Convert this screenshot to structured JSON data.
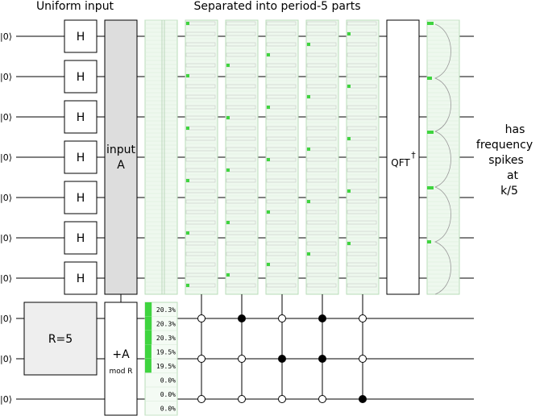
{
  "headers": {
    "left": "Uniform input",
    "right": "Separated into period-5 parts"
  },
  "ket_label": "|0⟩",
  "wire_count": 10,
  "h_gate_label": "H",
  "input_gate": {
    "line1": "input",
    "line2": "A"
  },
  "r_gate_label": "R=5",
  "add_gate": {
    "line1": "+A",
    "line2": "mod R"
  },
  "qft_gate": {
    "label": "QFT",
    "dagger": "†"
  },
  "note": [
    "has",
    "frequency",
    "spikes",
    "at",
    "k/5"
  ],
  "probabilities": [
    "20.3%",
    "20.3%",
    "20.3%",
    "19.5%",
    "19.5%",
    "0.0%",
    "0.0%",
    "0.0%"
  ],
  "prob_fill": [
    0.203,
    0.203,
    0.203,
    0.195,
    0.195,
    0.0,
    0.0,
    0.0
  ],
  "colors": {
    "wire": "#000000",
    "gate_border": "#000000",
    "gate_fill": "#ffffff",
    "gray_gate": "#dddddd",
    "display_bg": "#eef8ee",
    "display_border": "#b9ddb9",
    "bar_green": "#3fd43f",
    "bar_outline": "#999999"
  },
  "control_patterns": [
    [
      "open",
      "open",
      "open"
    ],
    [
      "filled",
      "open",
      "open"
    ],
    [
      "open",
      "filled",
      "open"
    ],
    [
      "filled",
      "filled",
      "open"
    ],
    [
      "open",
      "open",
      "filled"
    ]
  ]
}
